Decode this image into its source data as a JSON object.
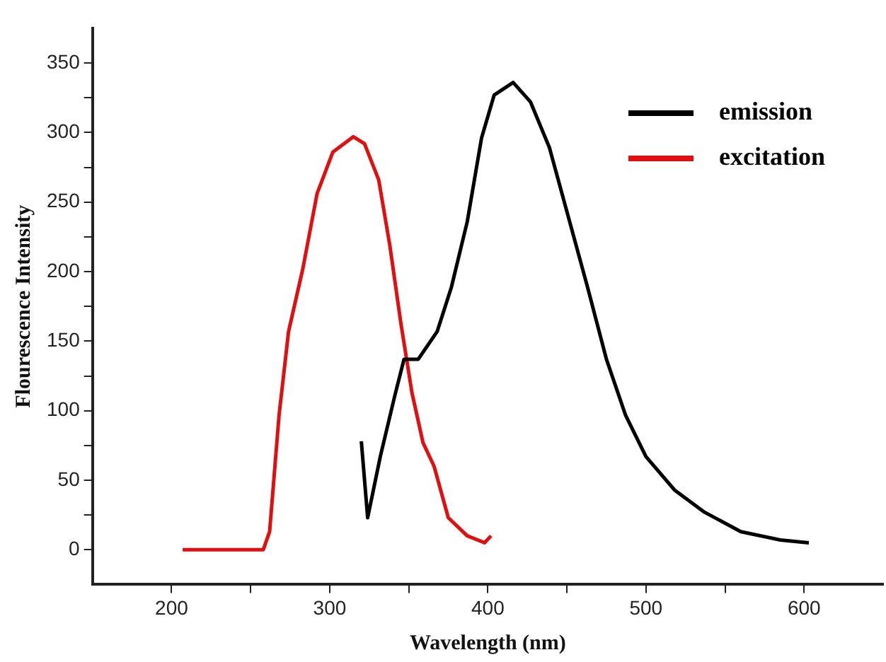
{
  "chart_data": {
    "type": "line",
    "xlabel": "Wavelength (nm)",
    "ylabel": "Flourescence Intensity",
    "xlim": [
      150,
      650
    ],
    "xticks": [
      {
        "value": 200,
        "label": "200"
      },
      {
        "value": 250,
        "label": null
      },
      {
        "value": 300,
        "label": "300"
      },
      {
        "value": 350,
        "label": null
      },
      {
        "value": 400,
        "label": "400"
      },
      {
        "value": 450,
        "label": null
      },
      {
        "value": 500,
        "label": "500"
      },
      {
        "value": 550,
        "label": null
      },
      {
        "value": 600,
        "label": "600"
      }
    ],
    "ylim": [
      -25,
      375
    ],
    "yticks": [
      0,
      {
        "value": 25,
        "label": null
      },
      50,
      {
        "value": 75,
        "label": null
      },
      100,
      {
        "value": 125,
        "label": null
      },
      150,
      {
        "value": 175,
        "label": null
      },
      200,
      {
        "value": 225,
        "label": null
      },
      250,
      {
        "value": 275,
        "label": null
      },
      300,
      {
        "value": 325,
        "label": null
      },
      350
    ],
    "grid": false,
    "legend": "top right",
    "marker": "none",
    "line_style": "solid",
    "series": [
      {
        "name": "emission",
        "color": "#000000",
        "x": [
          320,
          324,
          332,
          341,
          347,
          356,
          368,
          377,
          387,
          396,
          404,
          416,
          427,
          439,
          451,
          463,
          475,
          487,
          500,
          518,
          537,
          560,
          585,
          603
        ],
        "values": [
          78,
          23,
          67,
          110,
          137,
          137,
          157,
          189,
          236,
          296,
          327,
          336,
          322,
          289,
          239,
          189,
          137,
          97,
          67,
          43,
          27,
          13,
          7,
          5
        ]
      },
      {
        "name": "excitation",
        "color": "#e01010",
        "x": [
          207,
          230,
          258,
          262,
          268,
          274,
          283,
          292,
          302,
          315,
          322,
          331,
          338,
          345,
          352,
          359,
          366,
          375,
          387,
          398,
          402
        ],
        "values": [
          0,
          0,
          0,
          13,
          97,
          157,
          202,
          256,
          286,
          297,
          292,
          266,
          219,
          163,
          113,
          77,
          60,
          23,
          10,
          5,
          10
        ]
      }
    ]
  }
}
